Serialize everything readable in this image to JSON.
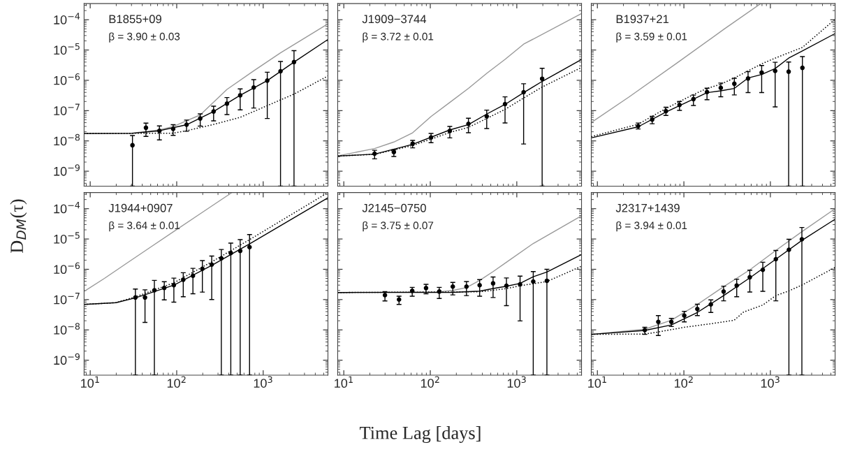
{
  "chart_data": [
    {
      "type": "line",
      "xlim": [
        8.5,
        5600
      ],
      "ylim": [
        3.2e-10,
        0.00034
      ],
      "log": "xy",
      "tick_labels": "y",
      "ylabel": "D$_{DM}$(τ)",
      "xticks": [
        {
          "value": 10,
          "label": null
        },
        {
          "value": 100,
          "label": null
        },
        {
          "value": 1000,
          "label": null
        }
      ],
      "yticks": [
        {
          "value": 1e-09,
          "label": "10$^{−9}$"
        },
        {
          "value": 1e-08,
          "label": "10$^{−8}$"
        },
        {
          "value": 1e-07,
          "label": "10$^{−7}$"
        },
        {
          "value": 1e-06,
          "label": "10$^{−6}$"
        },
        {
          "value": 1e-05,
          "label": "10$^{−5}$"
        },
        {
          "value": 0.0001,
          "label": "10$^{−4}$"
        }
      ],
      "annotations": [
        "B1855+09",
        "β = 3.90 ± 0.03"
      ],
      "series": [
        {
          "type": "line",
          "color": "#999999",
          "line_style": "solid",
          "x": [
            8.5,
            30,
            63,
            91,
            187,
            381,
            777,
            1585,
            5600
          ],
          "values": [
            1.75e-08,
            1.8e-08,
            2.3e-08,
            2.97e-08,
            7.2e-08,
            5e-07,
            2.06e-06,
            8.1e-06,
            7.3e-05
          ]
        },
        {
          "type": "line",
          "color": "#000000",
          "line_style": "dotted",
          "x": [
            8.5,
            91,
            130,
            267,
            542,
            1114,
            2270,
            5600
          ],
          "values": [
            1.75e-08,
            1.8e-08,
            2.16e-08,
            3.5e-08,
            6e-08,
            1.46e-07,
            3.5e-07,
            1.39e-06
          ]
        },
        {
          "type": "line",
          "color": "#000000",
          "line_style": "solid",
          "x": [
            8.5,
            30,
            63,
            130,
            267,
            542,
            1114,
            2270,
            5600
          ],
          "values": [
            1.75e-08,
            1.78e-08,
            2.16e-08,
            3.42e-08,
            9.35e-08,
            3.2e-07,
            9.8e-07,
            4e-06,
            2.23e-05
          ]
        },
        {
          "type": "scatter",
          "color": "#000000",
          "marker": "circle",
          "x": [
            30.8,
            44.1,
            63.1,
            91,
            130,
            187,
            267,
            381,
            542,
            777,
            1114,
            1585,
            2270
          ],
          "values": [
            7.2e-09,
            2.72e-08,
            2.16e-08,
            2.49e-08,
            3.42e-08,
            5.5e-08,
            9.35e-08,
            1.7e-07,
            3.2e-07,
            5.8e-07,
            9.8e-07,
            1.99e-06,
            4e-06
          ],
          "errors": [
            [
              3.2e-10,
              1.5e-08
            ],
            [
              1.41e-08,
              3.86e-08
            ],
            [
              1.08e-08,
              3.13e-08
            ],
            [
              1.52e-08,
              3.42e-08
            ],
            [
              2.08e-08,
              4.86e-08
            ],
            [
              3.08e-08,
              7.8e-08
            ],
            [
              4.6e-08,
              1.4e-07
            ],
            [
              7.4e-08,
              2.7e-07
            ],
            [
              1.06e-07,
              5.2e-07
            ],
            [
              1.22e-07,
              1.05e-06
            ],
            [
              5.5e-08,
              1.85e-06
            ],
            [
              3.2e-10,
              4.17e-06
            ],
            [
              3.2e-10,
              9.55e-06
            ]
          ]
        }
      ]
    },
    {
      "type": "line",
      "xlim": [
        8.5,
        5600
      ],
      "ylim": [
        3.2e-10,
        0.00034
      ],
      "log": "xy",
      "tick_labels": false,
      "xticks": [
        {
          "value": 10,
          "label": null
        },
        {
          "value": 100,
          "label": null
        },
        {
          "value": 1000,
          "label": null
        }
      ],
      "yticks": [
        {
          "value": 1e-09,
          "label": null
        },
        {
          "value": 1e-08,
          "label": null
        },
        {
          "value": 1e-07,
          "label": null
        },
        {
          "value": 1e-06,
          "label": null
        },
        {
          "value": 1e-05,
          "label": null
        },
        {
          "value": 0.0001,
          "label": null
        }
      ],
      "annotations": [
        "J1909−3744",
        "β = 3.72 ± 0.01"
      ],
      "series": [
        {
          "type": "line",
          "color": "#999999",
          "line_style": "solid",
          "x": [
            8.5,
            22.7,
            37.9,
            62.5,
            102,
            168,
            276,
            449,
            731,
            1199,
            5600
          ],
          "values": [
            3.2e-09,
            5.6e-09,
            9.2e-09,
            1.86e-08,
            6.4e-08,
            1.86e-07,
            5.4e-07,
            1.7e-06,
            4.9e-06,
            1.56e-05,
            0.00016
          ]
        },
        {
          "type": "line",
          "color": "#000000",
          "line_style": "dotted",
          "x": [
            8.5,
            22.7,
            62.5,
            168,
            276,
            449,
            731,
            1199,
            1963,
            5600
          ],
          "values": [
            3.16e-09,
            3.6e-09,
            7e-09,
            1.9e-08,
            2.8e-08,
            5.5e-08,
            1.1e-07,
            2.6e-07,
            6e-07,
            2.65e-06
          ]
        },
        {
          "type": "line",
          "color": "#000000",
          "line_style": "solid",
          "x": [
            8.5,
            22.7,
            62.5,
            168,
            276,
            449,
            731,
            1199,
            1963,
            5600
          ],
          "values": [
            3.16e-09,
            3.65e-09,
            7.7e-09,
            2.3e-08,
            3.45e-08,
            7.7e-08,
            1.6e-07,
            3.9e-07,
            9.2e-07,
            4.9e-06
          ]
        },
        {
          "type": "scatter",
          "color": "#000000",
          "marker": "circle",
          "x": [
            22.7,
            37.9,
            62.5,
            102,
            168,
            276,
            449,
            731,
            1199,
            1963
          ],
          "values": [
            3.78e-09,
            4.28e-09,
            8.1e-09,
            1.3e-08,
            2.14e-08,
            3.65e-08,
            6.5e-08,
            1.64e-07,
            4.05e-07,
            1.13e-06
          ],
          "errors": [
            [
              2.56e-09,
              4.9e-09
            ],
            [
              3.05e-09,
              5.1e-09
            ],
            [
              5.9e-09,
              1.04e-08
            ],
            [
              8.7e-09,
              1.76e-08
            ],
            [
              1.26e-08,
              3e-08
            ],
            [
              1.86e-08,
              5.6e-08
            ],
            [
              2.56e-08,
              1.04e-07
            ],
            [
              3.9e-08,
              2.84e-07
            ],
            [
              7.9e-09,
              7.7e-07
            ],
            [
              3.2e-10,
              2.5e-06
            ]
          ]
        }
      ]
    },
    {
      "type": "line",
      "xlim": [
        8.5,
        5600
      ],
      "ylim": [
        3.2e-10,
        0.00034
      ],
      "log": "xy",
      "tick_labels": false,
      "xticks": [
        {
          "value": 10,
          "label": null
        },
        {
          "value": 100,
          "label": null
        },
        {
          "value": 1000,
          "label": null
        }
      ],
      "yticks": [
        {
          "value": 1e-09,
          "label": null
        },
        {
          "value": 1e-08,
          "label": null
        },
        {
          "value": 1e-07,
          "label": null
        },
        {
          "value": 1e-06,
          "label": null
        },
        {
          "value": 1e-05,
          "label": null
        },
        {
          "value": 0.0001,
          "label": null
        }
      ],
      "annotations": [
        "B1937+21",
        "β = 3.59 ± 0.01"
      ],
      "series": [
        {
          "type": "line",
          "color": "#999999",
          "line_style": "solid",
          "x": [
            8.5,
            23.4,
            82.8,
            292,
            773
          ],
          "values": [
            4.03e-08,
            2.86e-07,
            3.68e-06,
            4.9e-05,
            0.00034
          ]
        },
        {
          "type": "line",
          "color": "#000000",
          "line_style": "dotted",
          "x": [
            8.5,
            29.6,
            62,
            129,
            185,
            267,
            383,
            552,
            793,
            1135,
            2345,
            5600
          ],
          "values": [
            1.38e-08,
            3.55e-08,
            1.17e-07,
            3.4e-07,
            5.4e-07,
            7.4e-07,
            1.2e-06,
            2.04e-06,
            3.5e-06,
            5.4e-06,
            1.22e-05,
            0.000104
          ]
        },
        {
          "type": "line",
          "color": "#000000",
          "line_style": "solid",
          "x": [
            8.5,
            29.6,
            62,
            129,
            185,
            267,
            383,
            469,
            552,
            793,
            1135,
            1626,
            2345,
            5600
          ],
          "values": [
            1.26e-08,
            2.92e-08,
            9e-08,
            2.4e-07,
            3.9e-07,
            4.5e-07,
            5.4e-07,
            8.4e-07,
            1.19e-06,
            1.56e-06,
            2.44e-06,
            5.4e-06,
            9.3e-06,
            3.5e-05
          ]
        },
        {
          "type": "scatter",
          "color": "#000000",
          "marker": "circle",
          "x": [
            29.6,
            43,
            62,
            89,
            129,
            185,
            267,
            383,
            552,
            793,
            1135,
            1626,
            2345
          ],
          "values": [
            3.07e-08,
            5.07e-08,
            9.6e-08,
            1.53e-07,
            2.4e-07,
            4.1e-07,
            5.65e-07,
            7.7e-07,
            1.15e-06,
            1.8e-06,
            2.04e-06,
            1.93e-06,
            2.58e-06
          ],
          "errors": [
            [
              2.48e-08,
              3.88e-08
            ],
            [
              3.68e-08,
              6.5e-08
            ],
            [
              6.9e-08,
              1.29e-07
            ],
            [
              1.02e-07,
              2e-07
            ],
            [
              1.48e-07,
              3.25e-07
            ],
            [
              2.28e-07,
              5.5e-07
            ],
            [
              2.87e-07,
              8.1e-07
            ],
            [
              3.3e-07,
              1.17e-06
            ],
            [
              3.95e-07,
              1.94e-06
            ],
            [
              3.95e-07,
              3.08e-06
            ],
            [
              1.33e-07,
              3.95e-06
            ],
            [
              3.2e-10,
              4.03e-06
            ],
            [
              3.2e-10,
              6.07e-06
            ]
          ]
        }
      ]
    },
    {
      "type": "line",
      "xlim": [
        8.5,
        5600
      ],
      "ylim": [
        3.2e-10,
        0.00034
      ],
      "log": "xy",
      "xticks": [
        {
          "value": 10,
          "label": "10$^{1}$"
        },
        {
          "value": 100,
          "label": "10$^{2}$"
        },
        {
          "value": 1000,
          "label": "10$^{3}$"
        }
      ],
      "yticks": [
        {
          "value": 1e-09,
          "label": "10$^{−9}$"
        },
        {
          "value": 1e-08,
          "label": "10$^{−8}$"
        },
        {
          "value": 1e-07,
          "label": "10$^{−7}$"
        },
        {
          "value": 1e-06,
          "label": "10$^{−6}$"
        },
        {
          "value": 1e-05,
          "label": "10$^{−5}$"
        },
        {
          "value": 0.0001,
          "label": "10$^{−4}$"
        }
      ],
      "annotations": [
        "J1944+0907",
        "β = 3.64 ± 0.01"
      ],
      "series": [
        {
          "type": "line",
          "color": "#999999",
          "line_style": "solid",
          "x": [
            8.5,
            14.6,
            27.2,
            50.9,
            95,
            178,
            427
          ],
          "values": [
            1.86e-07,
            5e-07,
            1.67e-06,
            5.6e-06,
            1.86e-05,
            6.2e-05,
            0.00033
          ]
        },
        {
          "type": "line",
          "color": "#000000",
          "line_style": "dotted",
          "x": [
            8.5,
            19.9,
            33.3,
            92.7,
            254,
            695,
            5600
          ],
          "values": [
            6.9e-08,
            7.9e-08,
            1.23e-07,
            3.58e-07,
            1.76e-06,
            9.5e-06,
            0.00034
          ]
        },
        {
          "type": "line",
          "color": "#000000",
          "line_style": "solid",
          "x": [
            8.5,
            19.9,
            33.3,
            92.7,
            254,
            695,
            5600
          ],
          "values": [
            6.9e-08,
            7.9e-08,
            1.14e-07,
            3e-07,
            1.35e-06,
            6.9e-06,
            0.00023
          ]
        },
        {
          "type": "scatter",
          "color": "#000000",
          "marker": "circle",
          "x": [
            33.3,
            43,
            55.2,
            71.8,
            92.7,
            119,
            154,
            198,
            254,
            328,
            422,
            542,
            695
          ],
          "values": [
            1.17e-07,
            1.17e-07,
            2.03e-07,
            2.43e-07,
            3e-07,
            4.5e-07,
            6.1e-07,
            1.04e-06,
            1.43e-06,
            2.3e-06,
            3.45e-06,
            4.05e-06,
            5.4e-06
          ],
          "errors": [
            [
              3.2e-10,
              2.22e-07
            ],
            [
              1.76e-08,
              2.1e-07
            ],
            [
              3.2e-10,
              4.3e-07
            ],
            [
              9.8e-08,
              3.9e-07
            ],
            [
              8.2e-08,
              5.1e-07
            ],
            [
              1.24e-07,
              7.7e-07
            ],
            [
              1.56e-07,
              1.07e-06
            ],
            [
              1.76e-07,
              1.93e-06
            ],
            [
              1e-07,
              2.74e-06
            ],
            [
              3.2e-10,
              4.5e-06
            ],
            [
              3.2e-10,
              7.3e-06
            ],
            [
              3.2e-10,
              9.5e-06
            ],
            [
              3.2e-10,
              1.4e-05
            ]
          ]
        }
      ]
    },
    {
      "type": "line",
      "xlim": [
        8.5,
        5600
      ],
      "ylim": [
        3.2e-10,
        0.00034
      ],
      "log": "xy",
      "tick_labels": "x",
      "xlabel": "Time Lag [days]",
      "xticks": [
        {
          "value": 10,
          "label": "10$^{1}$"
        },
        {
          "value": 100,
          "label": "10$^{2}$"
        },
        {
          "value": 1000,
          "label": "10$^{3}$"
        }
      ],
      "yticks": [
        {
          "value": 1e-09,
          "label": null
        },
        {
          "value": 1e-08,
          "label": null
        },
        {
          "value": 1e-07,
          "label": null
        },
        {
          "value": 1e-06,
          "label": null
        },
        {
          "value": 1e-05,
          "label": null
        },
        {
          "value": 0.0001,
          "label": null
        }
      ],
      "annotations": [
        "J2145−0750",
        "β = 3.75 ± 0.07"
      ],
      "series": [
        {
          "type": "line",
          "color": "#999999",
          "line_style": "solid",
          "x": [
            8.5,
            127,
            182,
            262,
            372,
            532,
            759,
            1549,
            5600
          ],
          "values": [
            1.71e-07,
            1.8e-07,
            2e-07,
            2.5e-07,
            4.3e-07,
            8.4e-07,
            1.71e-06,
            7.1e-06,
            5.85e-05
          ]
        },
        {
          "type": "line",
          "color": "#000000",
          "line_style": "dotted",
          "x": [
            8.5,
            372,
            759,
            1091,
            2228,
            5600
          ],
          "values": [
            1.71e-07,
            1.8e-07,
            2.3e-07,
            2.86e-07,
            3.95e-07,
            1.26e-06
          ]
        },
        {
          "type": "line",
          "color": "#000000",
          "line_style": "solid",
          "x": [
            8.5,
            182,
            372,
            532,
            759,
            1091,
            1549,
            2228,
            5600
          ],
          "values": [
            1.71e-07,
            1.73e-07,
            1.9e-07,
            2.31e-07,
            2.75e-07,
            3.43e-07,
            5.65e-07,
            8.1e-07,
            3.08e-06
          ]
        },
        {
          "type": "scatter",
          "color": "#000000",
          "marker": "circle",
          "x": [
            29.9,
            43.5,
            61.8,
            89.3,
            127,
            182,
            262,
            372,
            532,
            759,
            1091,
            1549,
            2228
          ],
          "values": [
            1.4e-07,
            1e-07,
            1.94e-07,
            2.4e-07,
            1.84e-07,
            2.67e-07,
            2.67e-07,
            2.97e-07,
            3.43e-07,
            2.86e-07,
            3.19e-07,
            3.95e-07,
            4.17e-07
          ],
          "errors": [
            [
              9e-08,
              1.84e-07
            ],
            [
              6.9e-08,
              1.29e-07
            ],
            [
              1.29e-07,
              2.53e-07
            ],
            [
              1.56e-07,
              3.19e-07
            ],
            [
              1.09e-07,
              2.53e-07
            ],
            [
              1.43e-07,
              3.68e-07
            ],
            [
              1.35e-07,
              3.95e-07
            ],
            [
              1.29e-07,
              4.56e-07
            ],
            [
              1.17e-07,
              5.55e-07
            ],
            [
              6.3e-08,
              5.16e-07
            ],
            [
              1.97e-08,
              5.95e-07
            ],
            [
              3.2e-10,
              8.4e-07
            ],
            [
              3.2e-10,
              1e-06
            ]
          ]
        }
      ]
    },
    {
      "type": "line",
      "xlim": [
        8.5,
        5600
      ],
      "ylim": [
        3.2e-10,
        0.00034
      ],
      "log": "xy",
      "tick_labels": "x",
      "xticks": [
        {
          "value": 10,
          "label": "10$^{1}$"
        },
        {
          "value": 100,
          "label": "10$^{2}$"
        },
        {
          "value": 1000,
          "label": "10$^{3}$"
        }
      ],
      "yticks": [
        {
          "value": 1e-09,
          "label": null
        },
        {
          "value": 1e-08,
          "label": null
        },
        {
          "value": 1e-07,
          "label": null
        },
        {
          "value": 1e-06,
          "label": null
        },
        {
          "value": 1e-05,
          "label": null
        },
        {
          "value": 0.0001,
          "label": null
        }
      ],
      "annotations": [
        "J2317+1439",
        "β = 3.94 ± 0.01"
      ],
      "series": [
        {
          "type": "line",
          "color": "#999999",
          "line_style": "solid",
          "x": [
            8.5,
            35.3,
            71.6,
            143,
            288,
            578,
            1156,
            2312,
            5600
          ],
          "values": [
            7.1e-09,
            1.05e-08,
            2.08e-08,
            6.9e-08,
            2.67e-07,
            9.6e-07,
            4.17e-06,
            1.74e-05,
            0.0001
          ]
        },
        {
          "type": "line",
          "color": "#000000",
          "line_style": "dotted",
          "x": [
            8.5,
            35.3,
            50.6,
            101,
            205,
            381,
            490,
            817,
            1156,
            1637,
            2312,
            5600
          ],
          "values": [
            7.1e-09,
            7.3e-09,
            8.5e-09,
            1.22e-08,
            1.59e-08,
            2.08e-08,
            3.88e-08,
            6.6e-08,
            1.35e-07,
            1.94e-07,
            3e-07,
            1.15e-06
          ]
        },
        {
          "type": "line",
          "color": "#000000",
          "line_style": "solid",
          "x": [
            8.5,
            35.3,
            71.6,
            143,
            288,
            578,
            1156,
            2312,
            5600
          ],
          "values": [
            7.1e-09,
            9.6e-09,
            1.46e-08,
            3.75e-08,
            1.35e-07,
            5.2e-07,
            2.15e-06,
            9e-06,
            4.5e-05
          ]
        },
        {
          "type": "scatter",
          "color": "#000000",
          "marker": "circle",
          "x": [
            35.3,
            50.6,
            71.6,
            101,
            143,
            205,
            288,
            408,
            578,
            817,
            1156,
            1637,
            2312
          ],
          "values": [
            9.8e-09,
            1.84e-08,
            1.84e-08,
            2.97e-08,
            4.9e-08,
            6.9e-08,
            1.84e-07,
            2.92e-07,
            5.45e-07,
            9.6e-07,
            2.15e-06,
            4.4e-06,
            9.8e-06
          ],
          "errors": [
            [
              7.1e-09,
              1.22e-08
            ],
            [
              6.5e-09,
              2.97e-08
            ],
            [
              1.29e-08,
              2.4e-08
            ],
            [
              1.84e-08,
              4.1e-08
            ],
            [
              2.97e-08,
              7e-08
            ],
            [
              3.75e-08,
              9.8e-08
            ],
            [
              9.1e-08,
              2.77e-07
            ],
            [
              1.24e-07,
              4.72e-07
            ],
            [
              1.77e-07,
              9.3e-07
            ],
            [
              1.87e-07,
              1.71e-06
            ],
            [
              9.1e-08,
              4.17e-06
            ],
            [
              3.2e-10,
              9.8e-06
            ],
            [
              3.2e-10,
              2.4e-05
            ]
          ]
        }
      ]
    }
  ]
}
